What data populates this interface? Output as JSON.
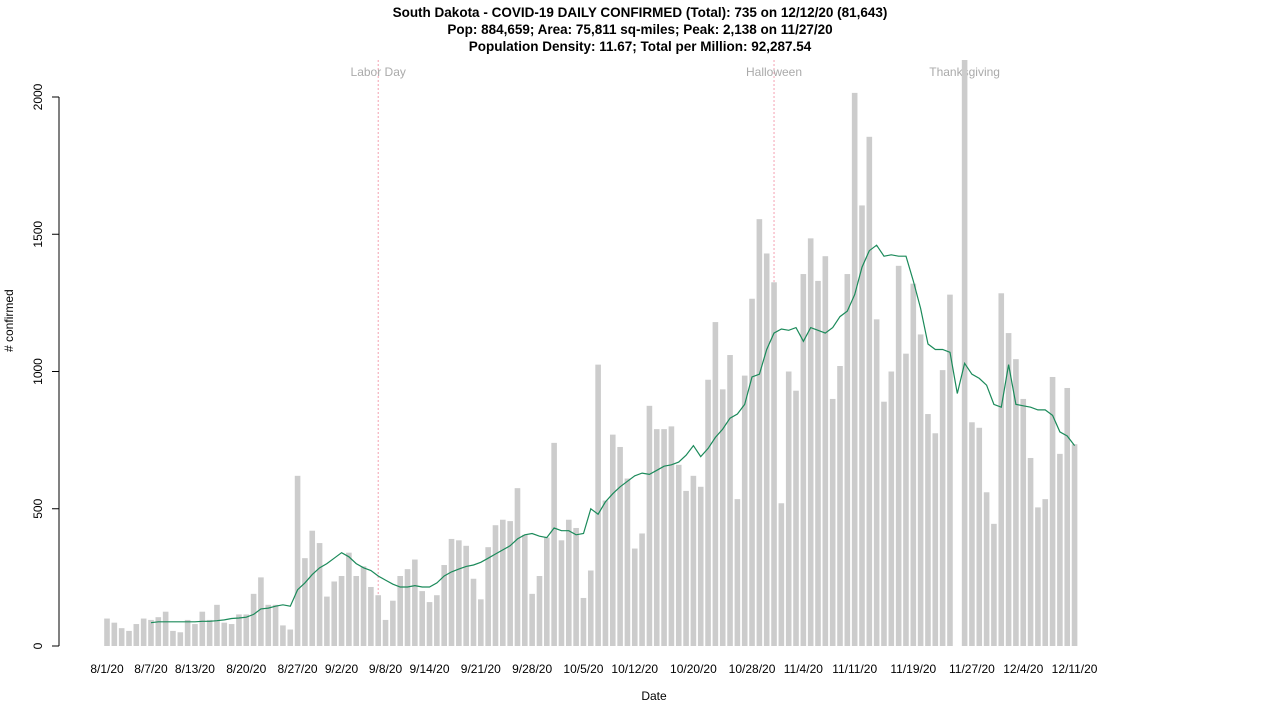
{
  "chart_data": {
    "type": "bar",
    "title": "South Dakota - COVID-19 DAILY CONFIRMED (Total): 735 on 12/12/20 (81,643)",
    "subtitle": [
      "Pop: 884,659; Area: 75,811 sq-miles; Peak: 2,138 on 11/27/20",
      "Population Density: 11.67; Total per Million: 92,287.54"
    ],
    "xlabel": "Date",
    "ylabel": "# confirmed",
    "ylim": [
      0,
      2000
    ],
    "yticks": [
      0,
      500,
      1000,
      1500,
      2000
    ],
    "xtick_labels": [
      {
        "index": 0,
        "label": "8/1/20"
      },
      {
        "index": 6,
        "label": "8/7/20"
      },
      {
        "index": 12,
        "label": "8/13/20"
      },
      {
        "index": 19,
        "label": "8/20/20"
      },
      {
        "index": 26,
        "label": "8/27/20"
      },
      {
        "index": 32,
        "label": "9/2/20"
      },
      {
        "index": 38,
        "label": "9/8/20"
      },
      {
        "index": 44,
        "label": "9/14/20"
      },
      {
        "index": 51,
        "label": "9/21/20"
      },
      {
        "index": 58,
        "label": "9/28/20"
      },
      {
        "index": 65,
        "label": "10/5/20"
      },
      {
        "index": 72,
        "label": "10/12/20"
      },
      {
        "index": 80,
        "label": "10/20/20"
      },
      {
        "index": 88,
        "label": "10/28/20"
      },
      {
        "index": 95,
        "label": "11/4/20"
      },
      {
        "index": 102,
        "label": "11/11/20"
      },
      {
        "index": 110,
        "label": "11/19/20"
      },
      {
        "index": 118,
        "label": "11/27/20"
      },
      {
        "index": 125,
        "label": "12/4/20"
      },
      {
        "index": 132,
        "label": "12/11/20"
      }
    ],
    "annotations": [
      {
        "label": "Labor Day",
        "index": 37
      },
      {
        "label": "Halloween",
        "index": 91
      },
      {
        "label": "Thanksgiving",
        "index": 117
      }
    ],
    "series": [
      {
        "type": "bar",
        "color": "#cccccc",
        "values": [
          100,
          85,
          65,
          55,
          80,
          100,
          95,
          105,
          125,
          55,
          50,
          95,
          80,
          125,
          95,
          150,
          85,
          80,
          115,
          115,
          190,
          250,
          150,
          150,
          75,
          60,
          620,
          320,
          420,
          375,
          180,
          235,
          255,
          340,
          255,
          290,
          215,
          185,
          95,
          165,
          255,
          280,
          315,
          200,
          160,
          185,
          295,
          390,
          385,
          365,
          245,
          170,
          360,
          440,
          460,
          455,
          575,
          405,
          190,
          255,
          395,
          740,
          385,
          460,
          430,
          175,
          275,
          1025,
          530,
          770,
          725,
          610,
          355,
          410,
          875,
          790,
          790,
          800,
          660,
          565,
          620,
          580,
          970,
          1180,
          935,
          1060,
          535,
          985,
          1265,
          1555,
          1430,
          1325,
          520,
          1000,
          930,
          1355,
          1485,
          1330,
          1420,
          900,
          1020,
          1355,
          2015,
          1605,
          1855,
          1190,
          890,
          1000,
          1385,
          1065,
          1320,
          1135,
          845,
          775,
          1005,
          1280,
          0,
          2138,
          815,
          795,
          560,
          445,
          1285,
          1140,
          1045,
          900,
          685,
          505,
          535,
          980,
          700,
          940,
          735
        ]
      },
      {
        "type": "line",
        "color": "#1b8a5a",
        "values": [
          null,
          null,
          null,
          null,
          null,
          null,
          85,
          88,
          88,
          88,
          88,
          88,
          88,
          90,
          90,
          92,
          95,
          100,
          102,
          105,
          115,
          135,
          138,
          145,
          150,
          145,
          205,
          230,
          260,
          285,
          300,
          320,
          340,
          325,
          300,
          285,
          275,
          255,
          240,
          225,
          215,
          215,
          220,
          215,
          215,
          230,
          255,
          270,
          280,
          290,
          295,
          305,
          320,
          335,
          350,
          365,
          390,
          405,
          410,
          400,
          395,
          430,
          420,
          420,
          405,
          410,
          500,
          480,
          525,
          555,
          580,
          600,
          620,
          630,
          625,
          640,
          655,
          660,
          670,
          695,
          730,
          690,
          720,
          760,
          790,
          830,
          845,
          880,
          980,
          990,
          1080,
          1140,
          1155,
          1150,
          1160,
          1110,
          1160,
          1150,
          1140,
          1160,
          1200,
          1220,
          1280,
          1380,
          1440,
          1460,
          1420,
          1425,
          1420,
          1420,
          1330,
          1230,
          1100,
          1080,
          1080,
          1070,
          920,
          1030,
          990,
          975,
          950,
          880,
          870,
          1025,
          880,
          875,
          870,
          860,
          860,
          840,
          780,
          765,
          730
        ]
      }
    ]
  }
}
